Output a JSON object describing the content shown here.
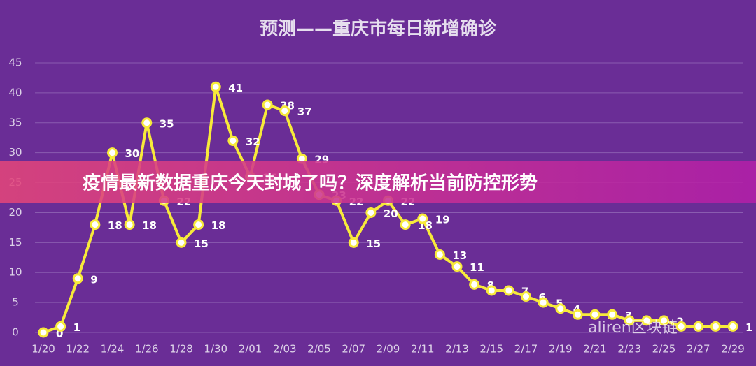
{
  "chart_data": {
    "type": "line",
    "title": "预测——重庆市每日新增确诊",
    "categories": [
      "1/20",
      null,
      "1/22",
      null,
      "1/24",
      null,
      "1/26",
      null,
      "1/28",
      null,
      "1/30",
      null,
      "2/01",
      null,
      "2/03",
      null,
      "2/05",
      null,
      "2/07",
      null,
      "2/09",
      null,
      "2/11",
      null,
      "2/13",
      null,
      "2/15",
      null,
      "2/17",
      null,
      "2/19",
      null,
      "2/21",
      null,
      "2/23",
      null,
      "2/25",
      null,
      "2/27",
      null,
      "2/29"
    ],
    "values": [
      0,
      1,
      9,
      18,
      30,
      18,
      35,
      22,
      15,
      18,
      41,
      32,
      26,
      38,
      37,
      29,
      23,
      22,
      15,
      20,
      22,
      18,
      19,
      13,
      11,
      8,
      7,
      7,
      6,
      5,
      4,
      3,
      3,
      3,
      2,
      2,
      2,
      1,
      1,
      1,
      1
    ],
    "color": "#f7ea3a",
    "ylim": [
      0,
      45
    ],
    "yticks": [
      0,
      5,
      10,
      15,
      20,
      25,
      30,
      35,
      40,
      45
    ],
    "grid": true
  },
  "banner": "疫情最新数据重庆今天封城了吗？深度解析当前防控形势",
  "watermark": "aliren区块链"
}
